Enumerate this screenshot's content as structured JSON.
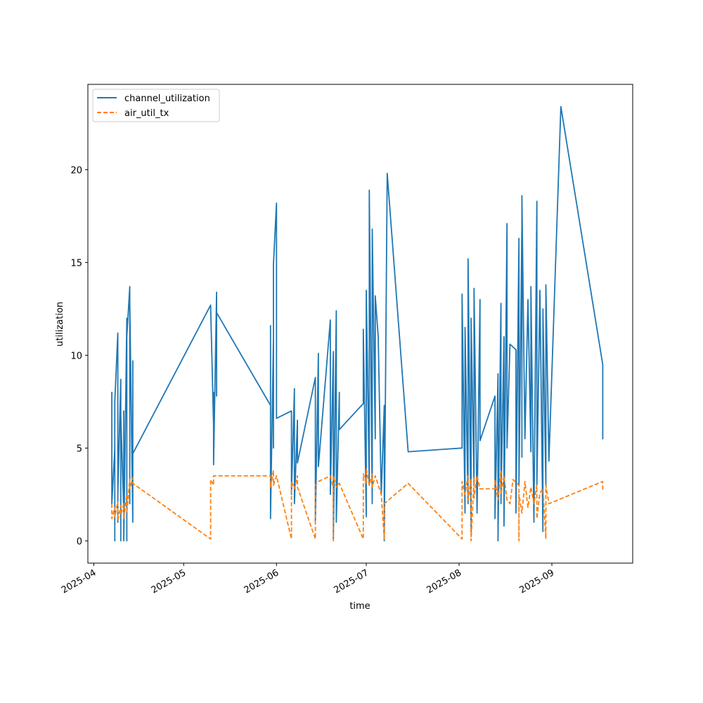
{
  "chart_data": {
    "type": "line",
    "title": "",
    "xlabel": "time",
    "ylabel": "utilization",
    "x_axis_type": "date",
    "xlim": [
      "2025-03-30",
      "2025-09-28"
    ],
    "ylim": [
      -1.2,
      24.6
    ],
    "x_ticks": [
      "2025-04",
      "2025-05",
      "2025-06",
      "2025-07",
      "2025-08",
      "2025-09"
    ],
    "x_tick_dates": [
      "2025-04-01",
      "2025-05-01",
      "2025-06-01",
      "2025-07-01",
      "2025-08-01",
      "2025-09-01"
    ],
    "y_ticks": [
      0,
      5,
      10,
      15,
      20
    ],
    "grid": false,
    "legend_position": "upper left",
    "series": [
      {
        "name": "channel_utilization",
        "color": "#1f77b4",
        "style": "solid",
        "points": [
          [
            "2025-04-07",
            4.0
          ],
          [
            "2025-04-07",
            8.0
          ],
          [
            "2025-04-07",
            2.0
          ],
          [
            "2025-04-08",
            5.0
          ],
          [
            "2025-04-08",
            0.0
          ],
          [
            "2025-04-08",
            7.5
          ],
          [
            "2025-04-09",
            11.2
          ],
          [
            "2025-04-09",
            1.0
          ],
          [
            "2025-04-09",
            9.2
          ],
          [
            "2025-04-09",
            2.5
          ],
          [
            "2025-04-10",
            8.7
          ],
          [
            "2025-04-10",
            0.0
          ],
          [
            "2025-04-10",
            6.8
          ],
          [
            "2025-04-11",
            1.5
          ],
          [
            "2025-04-11",
            7.0
          ],
          [
            "2025-04-11",
            0.0
          ],
          [
            "2025-04-12",
            12.0
          ],
          [
            "2025-04-12",
            0.0
          ],
          [
            "2025-04-12",
            11.0
          ],
          [
            "2025-04-13",
            13.7
          ],
          [
            "2025-04-13",
            2.0
          ],
          [
            "2025-04-13",
            12.9
          ],
          [
            "2025-04-14",
            1.0
          ],
          [
            "2025-04-14",
            9.7
          ],
          [
            "2025-04-14",
            4.7
          ],
          [
            "2025-05-10",
            12.7
          ],
          [
            "2025-05-11",
            6.2
          ],
          [
            "2025-05-11",
            8.0
          ],
          [
            "2025-05-11",
            4.1
          ],
          [
            "2025-05-12",
            13.4
          ],
          [
            "2025-05-12",
            7.8
          ],
          [
            "2025-05-12",
            12.3
          ],
          [
            "2025-05-30",
            7.3
          ],
          [
            "2025-05-30",
            11.6
          ],
          [
            "2025-05-30",
            1.2
          ],
          [
            "2025-05-31",
            11.0
          ],
          [
            "2025-05-31",
            5.0
          ],
          [
            "2025-05-31",
            14.9
          ],
          [
            "2025-06-01",
            18.2
          ],
          [
            "2025-06-01",
            6.6
          ],
          [
            "2025-06-06",
            7.0
          ],
          [
            "2025-06-06",
            2.5
          ],
          [
            "2025-06-07",
            8.2
          ],
          [
            "2025-06-07",
            2.0
          ],
          [
            "2025-06-08",
            6.5
          ],
          [
            "2025-06-08",
            4.2
          ],
          [
            "2025-06-14",
            8.8
          ],
          [
            "2025-06-14",
            1.0
          ],
          [
            "2025-06-15",
            10.1
          ],
          [
            "2025-06-15",
            4.0
          ],
          [
            "2025-06-19",
            11.9
          ],
          [
            "2025-06-19",
            2.5
          ],
          [
            "2025-06-20",
            10.2
          ],
          [
            "2025-06-20",
            0.1
          ],
          [
            "2025-06-21",
            12.4
          ],
          [
            "2025-06-21",
            1.0
          ],
          [
            "2025-06-22",
            8.0
          ],
          [
            "2025-06-22",
            6.0
          ],
          [
            "2025-06-30",
            7.4
          ],
          [
            "2025-06-30",
            11.4
          ],
          [
            "2025-07-01",
            1.3
          ],
          [
            "2025-07-01",
            13.5
          ],
          [
            "2025-07-02",
            3.0
          ],
          [
            "2025-07-02",
            18.9
          ],
          [
            "2025-07-03",
            2.0
          ],
          [
            "2025-07-03",
            16.8
          ],
          [
            "2025-07-04",
            5.5
          ],
          [
            "2025-07-04",
            13.2
          ],
          [
            "2025-07-05",
            11.0
          ],
          [
            "2025-07-06",
            2.5
          ],
          [
            "2025-07-07",
            7.3
          ],
          [
            "2025-07-07",
            0.0
          ],
          [
            "2025-07-08",
            19.8
          ],
          [
            "2025-07-15",
            4.8
          ],
          [
            "2025-08-02",
            5.0
          ],
          [
            "2025-08-02",
            13.3
          ],
          [
            "2025-08-03",
            1.5
          ],
          [
            "2025-08-03",
            11.5
          ],
          [
            "2025-08-04",
            2.0
          ],
          [
            "2025-08-04",
            15.2
          ],
          [
            "2025-08-05",
            0.5
          ],
          [
            "2025-08-05",
            12.0
          ],
          [
            "2025-08-06",
            3.0
          ],
          [
            "2025-08-06",
            13.6
          ],
          [
            "2025-08-07",
            1.5
          ],
          [
            "2025-08-08",
            13.0
          ],
          [
            "2025-08-08",
            5.4
          ],
          [
            "2025-08-13",
            7.8
          ],
          [
            "2025-08-13",
            1.2
          ],
          [
            "2025-08-14",
            9.0
          ],
          [
            "2025-08-14",
            0.0
          ],
          [
            "2025-08-15",
            12.8
          ],
          [
            "2025-08-15",
            2.0
          ],
          [
            "2025-08-16",
            11.0
          ],
          [
            "2025-08-16",
            0.8
          ],
          [
            "2025-08-17",
            17.1
          ],
          [
            "2025-08-17",
            5.0
          ],
          [
            "2025-08-18",
            10.6
          ],
          [
            "2025-08-20",
            10.3
          ],
          [
            "2025-08-20",
            1.5
          ],
          [
            "2025-08-21",
            16.3
          ],
          [
            "2025-08-21",
            3.0
          ],
          [
            "2025-08-22",
            17.0
          ],
          [
            "2025-08-22",
            4.5
          ],
          [
            "2025-08-22",
            18.6
          ],
          [
            "2025-08-23",
            5.5
          ],
          [
            "2025-08-24",
            13.0
          ],
          [
            "2025-08-25",
            4.8
          ],
          [
            "2025-08-25",
            13.7
          ],
          [
            "2025-08-26",
            1.0
          ],
          [
            "2025-08-27",
            18.3
          ],
          [
            "2025-08-27",
            3.0
          ],
          [
            "2025-08-28",
            13.5
          ],
          [
            "2025-08-29",
            0.5
          ],
          [
            "2025-08-29",
            12.5
          ],
          [
            "2025-08-30",
            3.0
          ],
          [
            "2025-08-30",
            13.8
          ],
          [
            "2025-08-31",
            4.3
          ],
          [
            "2025-09-04",
            23.4
          ],
          [
            "2025-09-18",
            9.5
          ],
          [
            "2025-09-18",
            5.5
          ],
          [
            "2025-09-18",
            7.0
          ]
        ]
      },
      {
        "name": "air_util_tx",
        "color": "#ff7f0e",
        "style": "dashed",
        "points": [
          [
            "2025-04-07",
            2.0
          ],
          [
            "2025-04-07",
            1.2
          ],
          [
            "2025-04-08",
            1.8
          ],
          [
            "2025-04-08",
            1.3
          ],
          [
            "2025-04-09",
            2.1
          ],
          [
            "2025-04-09",
            1.1
          ],
          [
            "2025-04-10",
            1.9
          ],
          [
            "2025-04-10",
            1.4
          ],
          [
            "2025-04-11",
            2.0
          ],
          [
            "2025-04-11",
            1.2
          ],
          [
            "2025-04-12",
            2.5
          ],
          [
            "2025-04-12",
            1.5
          ],
          [
            "2025-04-13",
            3.3
          ],
          [
            "2025-04-13",
            2.8
          ],
          [
            "2025-04-14",
            3.4
          ],
          [
            "2025-04-14",
            3.1
          ],
          [
            "2025-05-10",
            0.1
          ],
          [
            "2025-05-10",
            3.3
          ],
          [
            "2025-05-11",
            3.0
          ],
          [
            "2025-05-11",
            3.5
          ],
          [
            "2025-05-30",
            3.5
          ],
          [
            "2025-05-30",
            2.9
          ],
          [
            "2025-05-31",
            3.8
          ],
          [
            "2025-05-31",
            3.0
          ],
          [
            "2025-06-01",
            3.5
          ],
          [
            "2025-06-06",
            0.1
          ],
          [
            "2025-06-06",
            3.2
          ],
          [
            "2025-06-07",
            2.8
          ],
          [
            "2025-06-08",
            3.5
          ],
          [
            "2025-06-08",
            2.9
          ],
          [
            "2025-06-14",
            0.1
          ],
          [
            "2025-06-14",
            3.0
          ],
          [
            "2025-06-15",
            3.2
          ],
          [
            "2025-06-19",
            3.5
          ],
          [
            "2025-06-20",
            2.8
          ],
          [
            "2025-06-20",
            0.0
          ],
          [
            "2025-06-20",
            3.5
          ],
          [
            "2025-06-21",
            2.9
          ],
          [
            "2025-06-22",
            3.1
          ],
          [
            "2025-06-30",
            0.1
          ],
          [
            "2025-06-30",
            3.6
          ],
          [
            "2025-07-01",
            3.1
          ],
          [
            "2025-07-01",
            3.9
          ],
          [
            "2025-07-02",
            3.0
          ],
          [
            "2025-07-03",
            3.6
          ],
          [
            "2025-07-03",
            2.9
          ],
          [
            "2025-07-04",
            3.5
          ],
          [
            "2025-07-06",
            2.5
          ],
          [
            "2025-07-07",
            0.1
          ],
          [
            "2025-07-07",
            2.0
          ],
          [
            "2025-07-15",
            3.1
          ],
          [
            "2025-08-02",
            0.1
          ],
          [
            "2025-08-02",
            3.2
          ],
          [
            "2025-08-03",
            2.5
          ],
          [
            "2025-08-04",
            3.5
          ],
          [
            "2025-08-04",
            2.2
          ],
          [
            "2025-08-05",
            3.3
          ],
          [
            "2025-08-05",
            0.0
          ],
          [
            "2025-08-06",
            3.4
          ],
          [
            "2025-08-06",
            2.3
          ],
          [
            "2025-08-07",
            3.5
          ],
          [
            "2025-08-08",
            2.8
          ],
          [
            "2025-08-13",
            2.8
          ],
          [
            "2025-08-13",
            3.3
          ],
          [
            "2025-08-14",
            2.2
          ],
          [
            "2025-08-15",
            3.8
          ],
          [
            "2025-08-15",
            2.5
          ],
          [
            "2025-08-16",
            3.5
          ],
          [
            "2025-08-17",
            2.2
          ],
          [
            "2025-08-18",
            2.0
          ],
          [
            "2025-08-19",
            3.3
          ],
          [
            "2025-08-21",
            3.0
          ],
          [
            "2025-08-21",
            0.0
          ],
          [
            "2025-08-21",
            2.5
          ],
          [
            "2025-08-22",
            1.5
          ],
          [
            "2025-08-23",
            3.2
          ],
          [
            "2025-08-24",
            1.8
          ],
          [
            "2025-08-25",
            2.9
          ],
          [
            "2025-08-26",
            2.0
          ],
          [
            "2025-08-27",
            3.0
          ],
          [
            "2025-08-27",
            1.2
          ],
          [
            "2025-08-28",
            2.6
          ],
          [
            "2025-08-29",
            2.8
          ],
          [
            "2025-08-30",
            0.1
          ],
          [
            "2025-08-30",
            3.0
          ],
          [
            "2025-08-31",
            2.0
          ],
          [
            "2025-09-18",
            3.2
          ],
          [
            "2025-09-18",
            2.7
          ]
        ]
      }
    ]
  }
}
